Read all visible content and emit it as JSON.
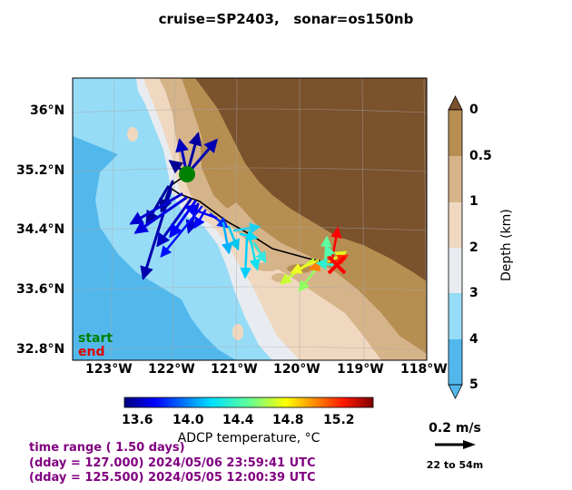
{
  "title": {
    "cruise": "cruise=SP2403,",
    "sonar": "sonar=os150nb"
  },
  "map": {
    "lat_labels": [
      "36°N",
      "35.2°N",
      "34.4°N",
      "33.6°N",
      "32.8°N"
    ],
    "lon_labels": [
      "123°W",
      "122°W",
      "121°W",
      "120°W",
      "119°W",
      "118°W"
    ],
    "legend": {
      "start": "start",
      "end": "end"
    },
    "colors": {
      "deep": "#52b8ec",
      "mid_deep": "#97dcf7",
      "shallow": "#e8ecf0",
      "shelf": "#f0d8c0",
      "land_light": "#d6b48a",
      "land_mid": "#b68e52",
      "land_dark": "#7a522c"
    }
  },
  "depth_colorbar": {
    "ticks": [
      "0",
      "0.5",
      "1",
      "2",
      "3",
      "4",
      "5"
    ],
    "label": "Depth (km)"
  },
  "temperature_colorbar": {
    "ticks": [
      "13.6",
      "14.0",
      "14.4",
      "14.8",
      "15.2"
    ],
    "label": "ADCP temperature, °C"
  },
  "time_info": {
    "range": "time range ( 1.50 days)",
    "end": "(dday = 127.000) 2024/05/06 23:59:41 UTC",
    "start": "(dday = 125.500) 2024/05/05 12:00:39 UTC"
  },
  "scale": {
    "speed": "0.2 m/s",
    "depth_range": "22 to 54m"
  }
}
